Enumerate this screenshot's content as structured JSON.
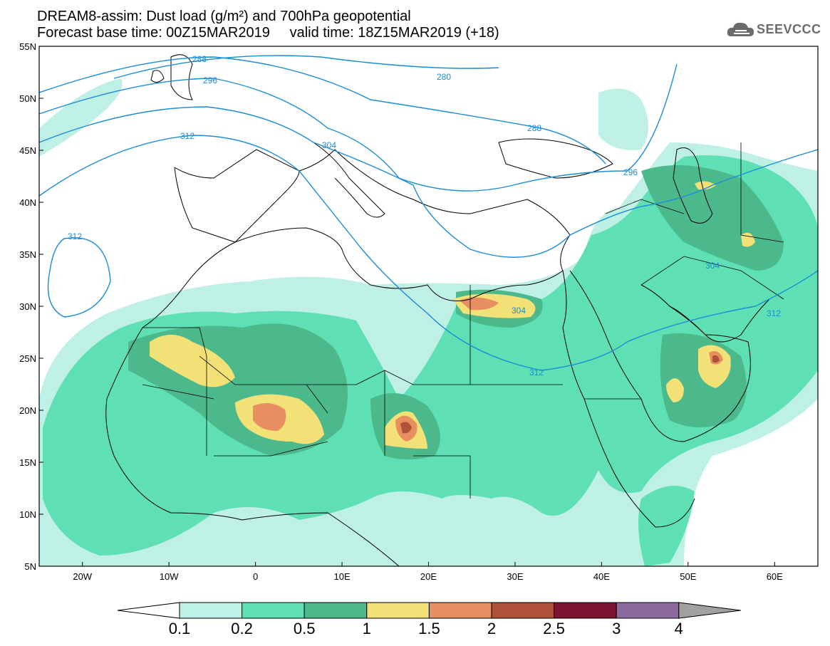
{
  "header": {
    "title_line1": "DREAM8-assim: Dust load (g/m²) and 700hPa geopotential",
    "title_line2": "Forecast base time: 00Z15MAR2019     valid time: 18Z15MAR2019 (+18)",
    "logo_text": "SEEVCCC",
    "logo_icon": "cloud-logo-icon"
  },
  "map": {
    "lat_labels": [
      "55N",
      "50N",
      "45N",
      "40N",
      "35N",
      "30N",
      "25N",
      "20N",
      "15N",
      "10N",
      "5N"
    ],
    "lon_labels": [
      "20W",
      "10W",
      "0",
      "10E",
      "20E",
      "30E",
      "40E",
      "50E",
      "60E"
    ],
    "lon_range": [
      -25,
      65
    ],
    "lat_range": [
      5,
      55
    ],
    "contour_labels": [
      "288",
      "296",
      "280",
      "288",
      "312",
      "304",
      "296",
      "312",
      "304",
      "304",
      "312",
      "312"
    ],
    "contour_color": "#1a8cd8"
  },
  "colorbar": {
    "labels": [
      "0.1",
      "0.2",
      "0.5",
      "1",
      "1.5",
      "2",
      "2.5",
      "3",
      "4"
    ],
    "colors": [
      "#ffffff",
      "#bff0e6",
      "#5ee0b4",
      "#4cb98c",
      "#f2e176",
      "#e88f62",
      "#b0523a",
      "#7a1431",
      "#8a6a9f",
      "#a0a0a0"
    ]
  }
}
